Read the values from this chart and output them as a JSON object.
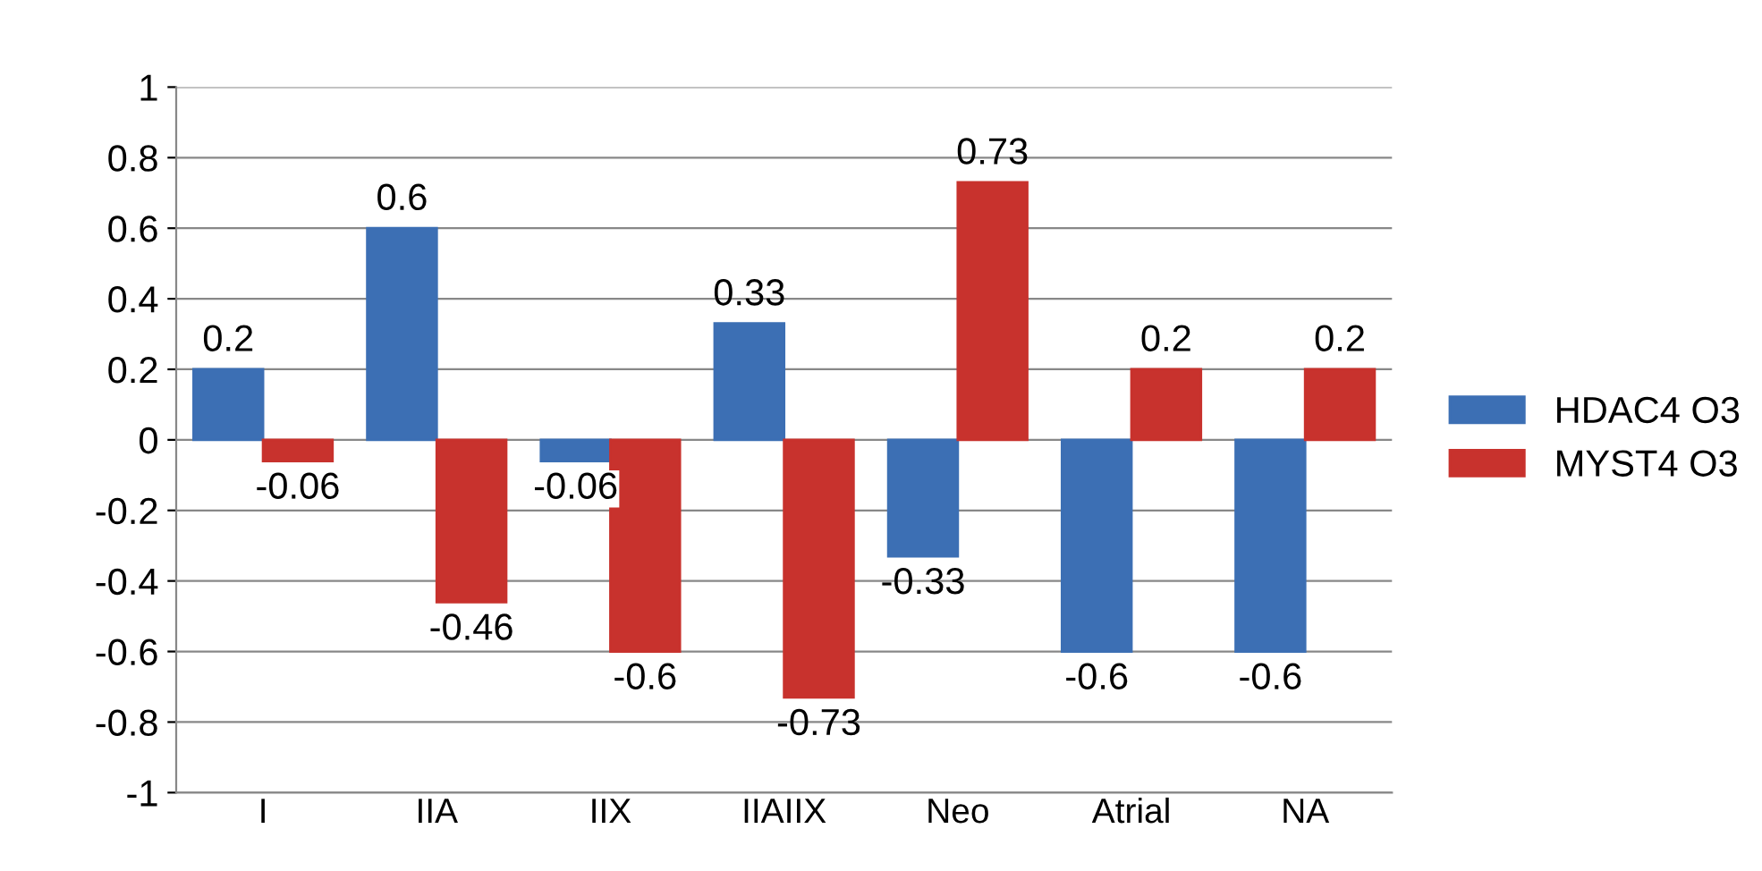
{
  "chart_data": {
    "type": "bar",
    "categories": [
      "I",
      "IIA",
      "IIX",
      "IIAIIX",
      "Neo",
      "Atrial",
      "NA"
    ],
    "series": [
      {
        "name": "HDAC4 O3",
        "color": "#3c6fb4",
        "values": [
          0.2,
          0.6,
          -0.06,
          0.33,
          -0.33,
          -0.6,
          -0.6
        ]
      },
      {
        "name": "MYST4 O3",
        "color": "#c8322d",
        "values": [
          -0.06,
          -0.46,
          -0.6,
          -0.73,
          0.73,
          0.2,
          0.2
        ]
      }
    ],
    "ylim": [
      -1,
      1
    ],
    "yticks": [
      -1,
      -0.8,
      -0.6,
      -0.4,
      -0.2,
      0,
      0.2,
      0.4,
      0.6,
      0.8,
      1
    ],
    "grid": "y",
    "legend": "right",
    "data_labels": true
  }
}
